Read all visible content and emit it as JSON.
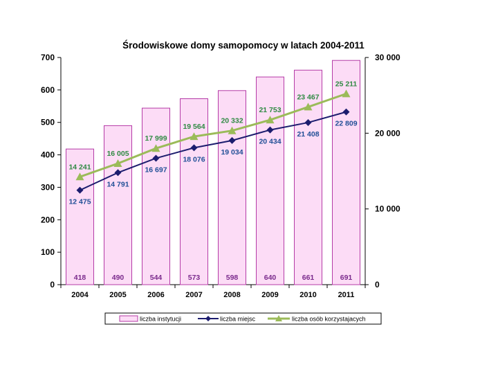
{
  "chart_data": {
    "type": "bar",
    "title": "Środowiskowe domy samopomocy  w latach 2004-2011",
    "categories": [
      "2004",
      "2005",
      "2006",
      "2007",
      "2008",
      "2009",
      "2010",
      "2011"
    ],
    "y_left": {
      "min": 0,
      "max": 700,
      "step": 100,
      "tick_labels": [
        "0",
        "100",
        "200",
        "300",
        "400",
        "500",
        "600",
        "700"
      ]
    },
    "y_right": {
      "min": 0,
      "max": 30000,
      "step": 10000,
      "tick_labels": [
        "0",
        "10 000",
        "20 000",
        "30 000"
      ]
    },
    "series": [
      {
        "name": "liczba instytucji",
        "kind": "bar",
        "axis": "left",
        "values": [
          418,
          490,
          544,
          573,
          598,
          640,
          661,
          691
        ],
        "labels": [
          "418",
          "490",
          "544",
          "573",
          "598",
          "640",
          "661",
          "691"
        ],
        "color": "#fcdcf6",
        "stroke": "#b43aa6",
        "label_color": "#7a2a8c"
      },
      {
        "name": "liczba miejsc",
        "kind": "line",
        "axis": "right",
        "marker": "diamond",
        "values": [
          12475,
          14791,
          16697,
          18076,
          19034,
          20434,
          21408,
          22809
        ],
        "labels": [
          "12 475",
          "14 791",
          "16 697",
          "18 076",
          "19 034",
          "20 434",
          "21 408",
          "22 809"
        ],
        "color": "#1c1c6e",
        "label_color": "#1f4e96"
      },
      {
        "name": "liczba osób korzystajacych",
        "kind": "line",
        "axis": "right",
        "marker": "triangle",
        "values": [
          14241,
          16005,
          17999,
          19564,
          20332,
          21753,
          23467,
          25211
        ],
        "labels": [
          "14 241",
          "16 005",
          "17 999",
          "19 564",
          "20 332",
          "21 753",
          "23 467",
          "25 211"
        ],
        "color": "#9bbb59",
        "label_color": "#2f8a43"
      }
    ],
    "legend_position": "bottom",
    "grid": false
  }
}
